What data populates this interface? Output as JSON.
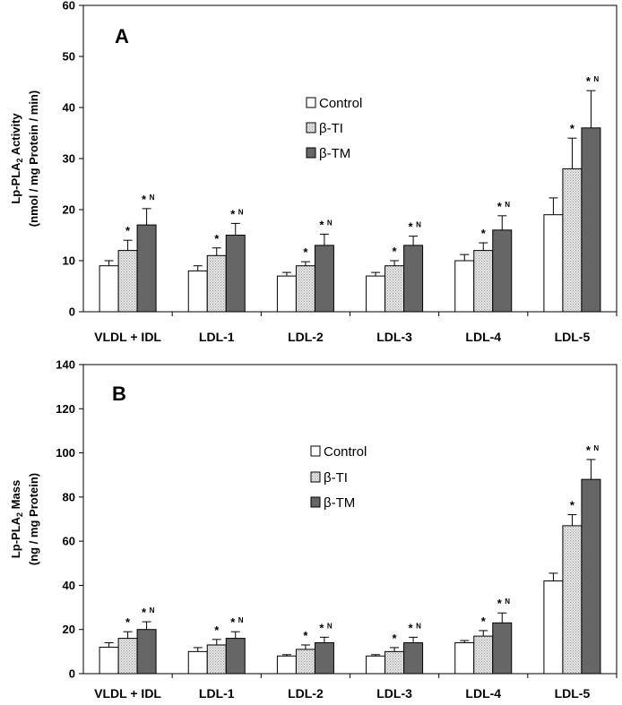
{
  "chart_data": [
    {
      "type": "bar",
      "panel": "A",
      "title": "",
      "ylabel_line1_prefix": "Lp-PLA",
      "ylabel_line1_sub": "2",
      "ylabel_line1_suffix": " Activity",
      "ylabel_line2": "(nmol / mg Protein / min)",
      "ylim": [
        0,
        60
      ],
      "yticks": [
        0,
        10,
        20,
        30,
        40,
        50,
        60
      ],
      "categories": [
        "VLDL + IDL",
        "LDL-1",
        "LDL-2",
        "LDL-3",
        "LDL-4",
        "LDL-5"
      ],
      "series": [
        {
          "name": "Control",
          "color": "#ffffff",
          "values": [
            9,
            8,
            7,
            7,
            10,
            19
          ],
          "errors": [
            1,
            1,
            0.7,
            0.7,
            1.2,
            3.3
          ],
          "annotations": [
            "",
            "",
            "",
            "",
            "",
            ""
          ]
        },
        {
          "name": "β-TI",
          "color": "#d9d9d9",
          "values": [
            12,
            11,
            9,
            9,
            12,
            28
          ],
          "errors": [
            2,
            1.5,
            0.8,
            1,
            1.5,
            6
          ],
          "annotations": [
            "*",
            "*",
            "*",
            "*",
            "*",
            "*"
          ]
        },
        {
          "name": "β-TM",
          "color": "#666666",
          "values": [
            17,
            15,
            13,
            13,
            16,
            36
          ],
          "errors": [
            3.2,
            2.3,
            2.2,
            1.8,
            2.8,
            7.3
          ],
          "annotations": [
            "*N",
            "*N",
            "*N",
            "*N",
            "*N",
            "*N"
          ]
        }
      ]
    },
    {
      "type": "bar",
      "panel": "B",
      "title": "",
      "ylabel_line1_prefix": "Lp-PLA",
      "ylabel_line1_sub": "2",
      "ylabel_line1_suffix": " Mass",
      "ylabel_line2": "(ng / mg Protein)",
      "ylim": [
        0,
        140
      ],
      "yticks": [
        0,
        20,
        40,
        60,
        80,
        100,
        120,
        140
      ],
      "categories": [
        "VLDL + IDL",
        "LDL-1",
        "LDL-2",
        "LDL-3",
        "LDL-4",
        "LDL-5"
      ],
      "series": [
        {
          "name": "Control",
          "color": "#ffffff",
          "values": [
            12,
            10,
            8,
            8,
            14,
            42
          ],
          "errors": [
            2,
            1.8,
            0.6,
            0.6,
            1,
            3.5
          ],
          "annotations": [
            "",
            "",
            "",
            "",
            "",
            ""
          ]
        },
        {
          "name": "β-TI",
          "color": "#d9d9d9",
          "values": [
            16,
            13,
            11,
            10,
            17,
            67
          ],
          "errors": [
            3,
            2.5,
            2,
            1.8,
            2.5,
            5
          ],
          "annotations": [
            "*",
            "*",
            "*",
            "*",
            "*",
            "*"
          ]
        },
        {
          "name": "β-TM",
          "color": "#666666",
          "values": [
            20,
            16,
            14,
            14,
            23,
            88
          ],
          "errors": [
            3.5,
            3,
            2.5,
            2.5,
            4.5,
            9
          ],
          "annotations": [
            "*N",
            "*N",
            "*N",
            "*N",
            "*N",
            "*N"
          ]
        }
      ]
    }
  ]
}
